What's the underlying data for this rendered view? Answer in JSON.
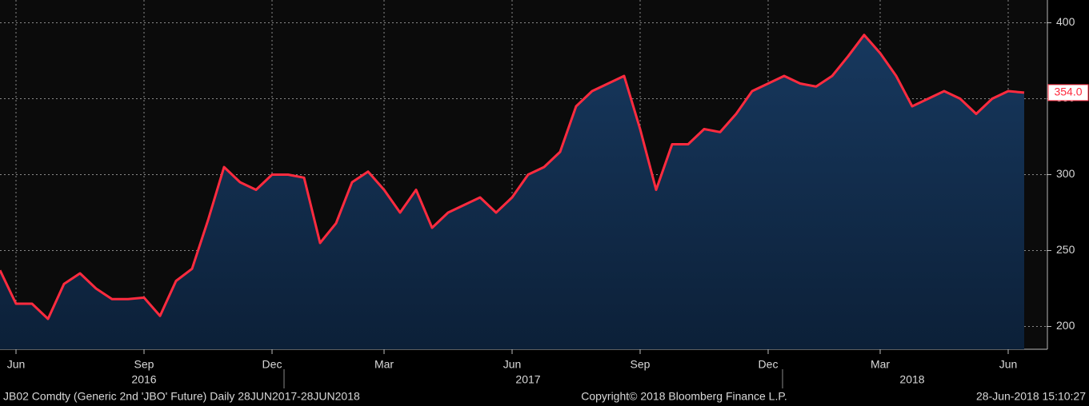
{
  "chart_data": {
    "type": "area-line",
    "categories": [
      null,
      "Jun",
      null,
      null,
      null,
      null,
      null,
      null,
      null,
      "Sep",
      null,
      null,
      null,
      null,
      null,
      null,
      null,
      "Dec",
      null,
      null,
      null,
      null,
      null,
      null,
      "Mar",
      null,
      null,
      null,
      null,
      null,
      null,
      null,
      "Jun",
      null,
      null,
      null,
      null,
      null,
      null,
      null,
      "Sep",
      null,
      null,
      null,
      null,
      null,
      null,
      null,
      "Dec",
      null,
      null,
      null,
      null,
      null,
      null,
      "Mar",
      null,
      null,
      null,
      null,
      null,
      null,
      null,
      "Jun",
      null
    ],
    "year_categories": [
      null,
      null,
      null,
      null,
      null,
      null,
      null,
      null,
      null,
      "2016",
      null,
      null,
      null,
      null,
      null,
      null,
      null,
      null,
      null,
      null,
      null,
      null,
      null,
      null,
      null,
      null,
      null,
      null,
      null,
      null,
      null,
      null,
      null,
      "2017",
      null,
      null,
      null,
      null,
      null,
      null,
      null,
      null,
      null,
      null,
      null,
      null,
      null,
      null,
      null,
      null,
      null,
      null,
      null,
      null,
      null,
      null,
      null,
      "2018",
      null,
      null,
      null,
      null,
      null,
      null,
      null
    ],
    "values": [
      237,
      215,
      215,
      205,
      228,
      235,
      225,
      218,
      218,
      219,
      207,
      230,
      238,
      270,
      305,
      295,
      290,
      300,
      300,
      298,
      255,
      268,
      295,
      302,
      290,
      275,
      290,
      265,
      275,
      280,
      285,
      275,
      285,
      300,
      305,
      315,
      345,
      355,
      360,
      365,
      330,
      290,
      320,
      320,
      330,
      328,
      340,
      355,
      360,
      365,
      360,
      358,
      365,
      378,
      392,
      380,
      365,
      345,
      350,
      355,
      350,
      340,
      350,
      355,
      354
    ],
    "value_labels": [
      null,
      null,
      null,
      null,
      null,
      null,
      null,
      null,
      null,
      null,
      null,
      null,
      null,
      null,
      null,
      null,
      null,
      null,
      null,
      null,
      null,
      null,
      null,
      null,
      null,
      null,
      null,
      null,
      null,
      null,
      null,
      null,
      null,
      null,
      null,
      null,
      null,
      null,
      null,
      null,
      null,
      null,
      null,
      null,
      null,
      null,
      null,
      null,
      null,
      null,
      null,
      null,
      null,
      null,
      null,
      null,
      null,
      null,
      null,
      null,
      null,
      null,
      null,
      null,
      "354.0"
    ],
    "color": "#ff2b3f",
    "fill": "#10294a",
    "ylim": [
      185,
      415
    ],
    "yticks": [
      200,
      250,
      300,
      350,
      400
    ],
    "grid": true,
    "footer_left": "JB02 Comdty (Generic 2nd 'JBO' Future)  Daily 28JUN2017-28JUN2018",
    "footer_center": "Copyright© 2018 Bloomberg Finance L.P.",
    "footer_right": "28-Jun-2018 15:10:27"
  }
}
